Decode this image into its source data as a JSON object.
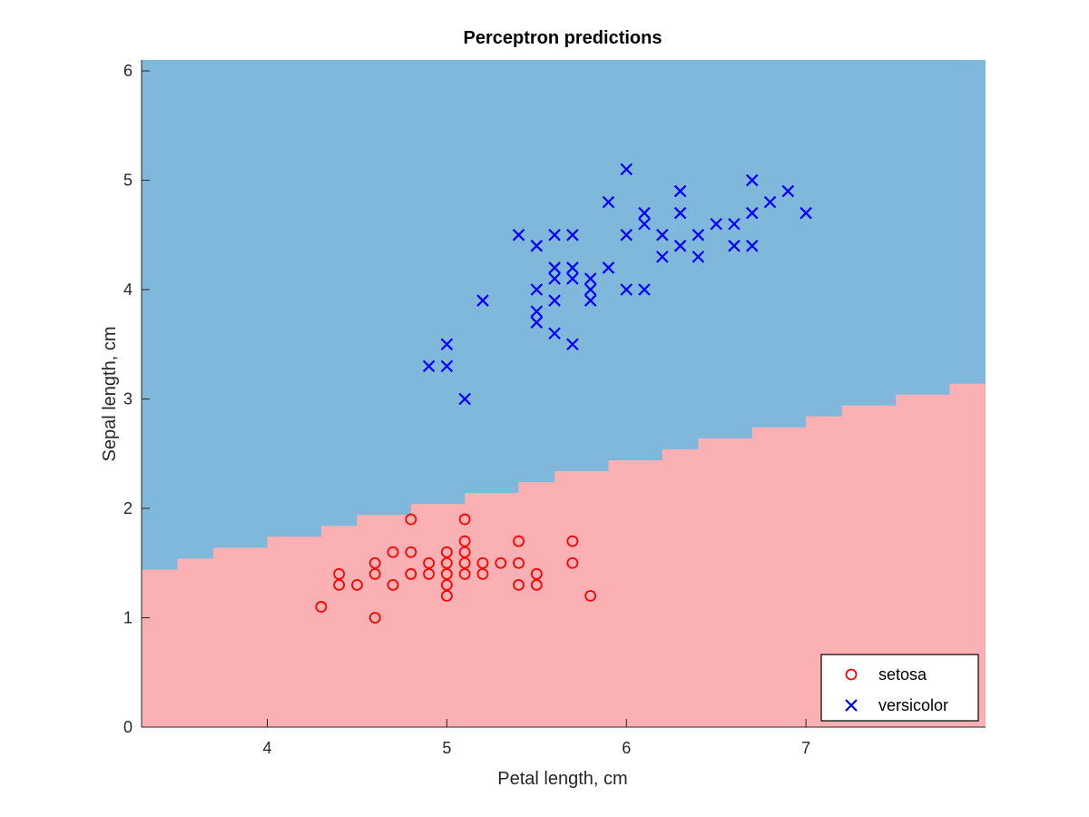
{
  "chart_data": {
    "type": "scatter",
    "title": "Perceptron predictions",
    "xlabel": "Petal length, cm",
    "ylabel": "Sepal length, cm",
    "xlim": [
      3.3,
      8.0
    ],
    "ylim": [
      0,
      6.1
    ],
    "xticks": [
      "4",
      "5",
      "6",
      "7"
    ],
    "xtick_values": [
      4,
      5,
      6,
      7
    ],
    "yticks": [
      "0",
      "1",
      "2",
      "3",
      "4",
      "5",
      "6"
    ],
    "ytick_values": [
      0,
      1,
      2,
      3,
      4,
      5,
      6
    ],
    "grid": false,
    "legend_position": "bottom-right",
    "decision_regions": {
      "colors": {
        "setosa": "#fbb1b4",
        "versicolor": "#80b8db"
      },
      "boundary_steps": [
        [
          3.3,
          1.44
        ],
        [
          3.4,
          1.44
        ],
        [
          3.5,
          1.54
        ],
        [
          3.6,
          1.54
        ],
        [
          3.7,
          1.64
        ],
        [
          3.8,
          1.64
        ],
        [
          3.9,
          1.64
        ],
        [
          4.0,
          1.74
        ],
        [
          4.1,
          1.74
        ],
        [
          4.2,
          1.74
        ],
        [
          4.3,
          1.84
        ],
        [
          4.4,
          1.84
        ],
        [
          4.5,
          1.94
        ],
        [
          4.6,
          1.94
        ],
        [
          4.7,
          1.94
        ],
        [
          4.8,
          2.04
        ],
        [
          4.9,
          2.04
        ],
        [
          5.0,
          2.04
        ],
        [
          5.1,
          2.14
        ],
        [
          5.2,
          2.14
        ],
        [
          5.3,
          2.14
        ],
        [
          5.4,
          2.24
        ],
        [
          5.5,
          2.24
        ],
        [
          5.6,
          2.34
        ],
        [
          5.7,
          2.34
        ],
        [
          5.8,
          2.34
        ],
        [
          5.9,
          2.44
        ],
        [
          6.0,
          2.44
        ],
        [
          6.1,
          2.44
        ],
        [
          6.2,
          2.54
        ],
        [
          6.3,
          2.54
        ],
        [
          6.4,
          2.64
        ],
        [
          6.5,
          2.64
        ],
        [
          6.6,
          2.64
        ],
        [
          6.7,
          2.74
        ],
        [
          6.8,
          2.74
        ],
        [
          6.9,
          2.74
        ],
        [
          7.0,
          2.84
        ],
        [
          7.1,
          2.84
        ],
        [
          7.2,
          2.94
        ],
        [
          7.3,
          2.94
        ],
        [
          7.4,
          2.94
        ],
        [
          7.5,
          3.04
        ],
        [
          7.6,
          3.04
        ],
        [
          7.7,
          3.04
        ],
        [
          7.8,
          3.14
        ],
        [
          7.9,
          3.14
        ],
        [
          8.0,
          3.24
        ]
      ]
    },
    "series": [
      {
        "name": "setosa",
        "marker": "circle",
        "color": "#ff0000",
        "points": [
          [
            4.3,
            1.1
          ],
          [
            4.4,
            1.3
          ],
          [
            4.4,
            1.4
          ],
          [
            4.5,
            1.3
          ],
          [
            4.6,
            1.0
          ],
          [
            4.6,
            1.4
          ],
          [
            4.6,
            1.5
          ],
          [
            4.7,
            1.3
          ],
          [
            4.7,
            1.6
          ],
          [
            4.8,
            1.4
          ],
          [
            4.8,
            1.6
          ],
          [
            4.8,
            1.9
          ],
          [
            4.9,
            1.4
          ],
          [
            4.9,
            1.5
          ],
          [
            5.0,
            1.2
          ],
          [
            5.0,
            1.3
          ],
          [
            5.0,
            1.4
          ],
          [
            5.0,
            1.5
          ],
          [
            5.0,
            1.6
          ],
          [
            5.1,
            1.4
          ],
          [
            5.1,
            1.5
          ],
          [
            5.1,
            1.6
          ],
          [
            5.1,
            1.7
          ],
          [
            5.1,
            1.9
          ],
          [
            5.2,
            1.4
          ],
          [
            5.2,
            1.5
          ],
          [
            5.3,
            1.5
          ],
          [
            5.4,
            1.3
          ],
          [
            5.4,
            1.5
          ],
          [
            5.4,
            1.7
          ],
          [
            5.5,
            1.3
          ],
          [
            5.5,
            1.4
          ],
          [
            5.7,
            1.5
          ],
          [
            5.7,
            1.7
          ],
          [
            5.8,
            1.2
          ]
        ]
      },
      {
        "name": "versicolor",
        "marker": "x",
        "color": "#0000ff",
        "points": [
          [
            4.9,
            3.3
          ],
          [
            5.0,
            3.3
          ],
          [
            5.0,
            3.5
          ],
          [
            5.1,
            3.0
          ],
          [
            5.2,
            3.9
          ],
          [
            5.4,
            4.5
          ],
          [
            5.5,
            3.7
          ],
          [
            5.5,
            3.8
          ],
          [
            5.5,
            4.0
          ],
          [
            5.5,
            4.4
          ],
          [
            5.6,
            3.6
          ],
          [
            5.6,
            3.9
          ],
          [
            5.6,
            4.1
          ],
          [
            5.6,
            4.2
          ],
          [
            5.6,
            4.5
          ],
          [
            5.7,
            3.5
          ],
          [
            5.7,
            4.1
          ],
          [
            5.7,
            4.2
          ],
          [
            5.7,
            4.5
          ],
          [
            5.8,
            3.9
          ],
          [
            5.8,
            4.0
          ],
          [
            5.8,
            4.1
          ],
          [
            5.9,
            4.2
          ],
          [
            5.9,
            4.8
          ],
          [
            6.0,
            4.0
          ],
          [
            6.0,
            4.5
          ],
          [
            6.0,
            5.1
          ],
          [
            6.1,
            4.0
          ],
          [
            6.1,
            4.6
          ],
          [
            6.1,
            4.7
          ],
          [
            6.2,
            4.3
          ],
          [
            6.2,
            4.5
          ],
          [
            6.3,
            4.4
          ],
          [
            6.3,
            4.7
          ],
          [
            6.3,
            4.9
          ],
          [
            6.4,
            4.3
          ],
          [
            6.4,
            4.5
          ],
          [
            6.5,
            4.6
          ],
          [
            6.6,
            4.4
          ],
          [
            6.6,
            4.6
          ],
          [
            6.7,
            4.4
          ],
          [
            6.7,
            4.7
          ],
          [
            6.7,
            5.0
          ],
          [
            6.8,
            4.8
          ],
          [
            6.9,
            4.9
          ],
          [
            7.0,
            4.7
          ]
        ]
      }
    ]
  }
}
